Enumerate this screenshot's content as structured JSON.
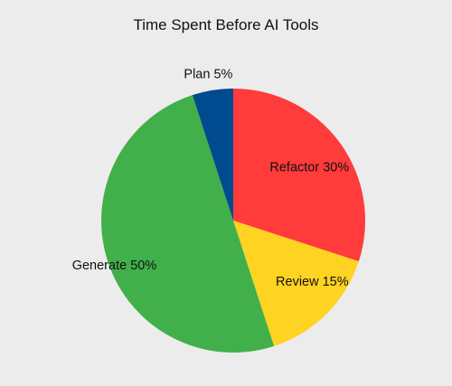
{
  "chart_data": {
    "type": "pie",
    "title": "Time Spent Before AI Tools",
    "slices": [
      {
        "label": "Refactor",
        "value": 30,
        "label_text": "Refactor 30%",
        "color": "#ff3b3b"
      },
      {
        "label": "Review",
        "value": 15,
        "label_text": "Review 15%",
        "color": "#ffd321"
      },
      {
        "label": "Generate",
        "value": 50,
        "label_text": "Generate 50%",
        "color": "#41b04a"
      },
      {
        "label": "Plan",
        "value": 5,
        "label_text": "Plan 5%",
        "color": "#004a8f"
      }
    ],
    "start_angle": "12 o'clock",
    "direction": "clockwise",
    "legend": "none",
    "background_color": "#ececec"
  }
}
